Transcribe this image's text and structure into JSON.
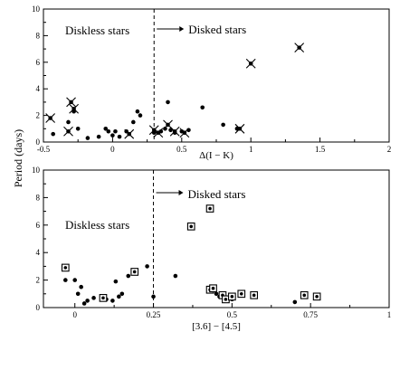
{
  "shared_ylabel": "Period (days)",
  "colors": {
    "axis": "#000000",
    "marker": "#000000",
    "background": "#ffffff"
  },
  "chart_data": [
    {
      "type": "scatter",
      "title": "",
      "xlabel": "Δ(I − K)",
      "ylabel": "",
      "xlim": [
        -0.5,
        2
      ],
      "ylim": [
        0,
        10
      ],
      "xticks": [
        -0.5,
        0,
        0.5,
        1,
        1.5,
        2
      ],
      "xtick_labels": [
        "-0.5",
        "0",
        "0.5",
        "1",
        "1.5",
        "2"
      ],
      "yticks": [
        0,
        2,
        4,
        6,
        8,
        10
      ],
      "ytick_labels": [
        "0",
        "2",
        "4",
        "6",
        "8",
        "10"
      ],
      "grid": false,
      "divider": {
        "x": 0.3,
        "style": "dashed"
      },
      "annotations": [
        {
          "text": "Diskless stars",
          "side": "left"
        },
        {
          "text": "Disked stars",
          "side": "right",
          "arrow": true
        }
      ],
      "series": [
        {
          "marker": "dot",
          "points": [
            [
              -0.43,
              0.6
            ],
            [
              -0.32,
              1.5
            ],
            [
              -0.28,
              2.3
            ],
            [
              -0.25,
              1.0
            ],
            [
              -0.18,
              0.3
            ],
            [
              -0.1,
              0.4
            ],
            [
              -0.05,
              1.0
            ],
            [
              -0.03,
              0.8
            ],
            [
              0.0,
              0.5
            ],
            [
              0.02,
              0.8
            ],
            [
              0.05,
              0.4
            ],
            [
              0.1,
              0.8
            ],
            [
              0.15,
              1.5
            ],
            [
              0.18,
              2.3
            ],
            [
              0.2,
              2.0
            ],
            [
              0.3,
              0.7
            ],
            [
              0.35,
              0.8
            ],
            [
              0.38,
              1.0
            ],
            [
              0.4,
              3.0
            ],
            [
              0.42,
              0.9
            ],
            [
              0.45,
              0.7
            ],
            [
              0.5,
              0.8
            ],
            [
              0.55,
              0.9
            ],
            [
              0.65,
              2.6
            ],
            [
              0.8,
              1.3
            ],
            [
              0.9,
              1.0
            ]
          ]
        },
        {
          "marker": "x-dot",
          "points": [
            [
              -0.45,
              1.8
            ],
            [
              -0.3,
              3.0
            ],
            [
              -0.28,
              2.5
            ],
            [
              -0.32,
              0.8
            ],
            [
              0.12,
              0.6
            ],
            [
              0.3,
              0.9
            ],
            [
              0.33,
              0.7
            ],
            [
              0.4,
              1.3
            ],
            [
              0.45,
              0.8
            ],
            [
              0.52,
              0.7
            ],
            [
              0.92,
              1.0
            ],
            [
              1.0,
              5.9
            ],
            [
              1.35,
              7.1
            ]
          ]
        }
      ]
    },
    {
      "type": "scatter",
      "title": "",
      "xlabel": "[3.6] − [4.5]",
      "ylabel": "",
      "xlim": [
        -0.1,
        1
      ],
      "ylim": [
        0,
        10
      ],
      "xticks": [
        0,
        0.25,
        0.5,
        0.75,
        1
      ],
      "xtick_labels": [
        "0",
        "0.25",
        "0.5",
        "0.75",
        "1"
      ],
      "yticks": [
        0,
        2,
        4,
        6,
        8,
        10
      ],
      "ytick_labels": [
        "0",
        "2",
        "4",
        "6",
        "8",
        "10"
      ],
      "grid": false,
      "divider": {
        "x": 0.25,
        "style": "dashed"
      },
      "annotations": [
        {
          "text": "Diskless stars",
          "side": "left"
        },
        {
          "text": "Disked stars",
          "side": "right",
          "arrow": true
        }
      ],
      "series": [
        {
          "marker": "dot",
          "points": [
            [
              -0.03,
              2.0
            ],
            [
              0.0,
              2.0
            ],
            [
              0.01,
              1.0
            ],
            [
              0.02,
              1.5
            ],
            [
              0.03,
              0.3
            ],
            [
              0.04,
              0.5
            ],
            [
              0.06,
              0.7
            ],
            [
              0.1,
              0.6
            ],
            [
              0.12,
              0.5
            ],
            [
              0.13,
              1.9
            ],
            [
              0.14,
              0.8
            ],
            [
              0.15,
              1.0
            ],
            [
              0.17,
              2.3
            ],
            [
              0.23,
              3.0
            ],
            [
              0.25,
              0.8
            ],
            [
              0.32,
              2.3
            ],
            [
              0.45,
              1.0
            ],
            [
              0.46,
              0.8
            ],
            [
              0.48,
              0.6
            ],
            [
              0.5,
              0.6
            ],
            [
              0.7,
              0.4
            ]
          ]
        },
        {
          "marker": "boxed-dot",
          "points": [
            [
              -0.03,
              2.9
            ],
            [
              0.09,
              0.7
            ],
            [
              0.19,
              2.6
            ],
            [
              0.37,
              5.9
            ],
            [
              0.43,
              7.2
            ],
            [
              0.43,
              1.3
            ],
            [
              0.44,
              1.4
            ],
            [
              0.47,
              0.9
            ],
            [
              0.48,
              0.6
            ],
            [
              0.5,
              0.8
            ],
            [
              0.53,
              1.0
            ],
            [
              0.57,
              0.9
            ],
            [
              0.73,
              0.9
            ],
            [
              0.77,
              0.8
            ]
          ]
        }
      ]
    }
  ]
}
